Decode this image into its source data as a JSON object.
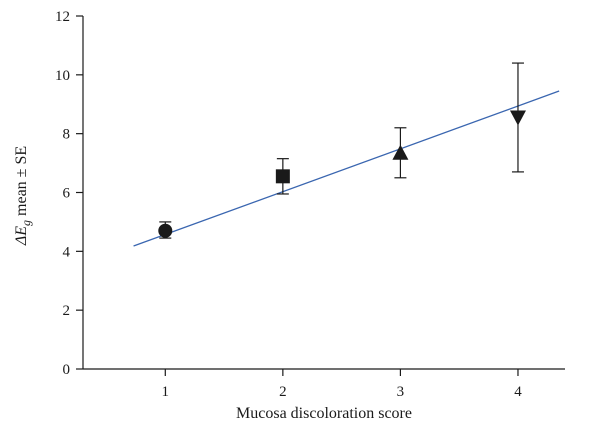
{
  "chart_data": {
    "type": "scatter",
    "title": "",
    "xlabel": "Mucosa discoloration score",
    "ylabel": {
      "prefix": "ΔE",
      "subscript": "g",
      "suffix": " mean ± SE"
    },
    "xlim": [
      0.3,
      4.4
    ],
    "ylim": [
      0,
      12
    ],
    "xticks": [
      1,
      2,
      3,
      4
    ],
    "yticks": [
      0,
      2,
      4,
      6,
      8,
      10,
      12
    ],
    "grid": false,
    "points": [
      {
        "x": 1,
        "y": 4.7,
        "err_low": 4.45,
        "err_high": 5.0,
        "marker": "circle"
      },
      {
        "x": 2,
        "y": 6.55,
        "err_low": 5.95,
        "err_high": 7.15,
        "marker": "square"
      },
      {
        "x": 3,
        "y": 7.35,
        "err_low": 6.5,
        "err_high": 8.2,
        "marker": "triangle-up"
      },
      {
        "x": 4,
        "y": 8.55,
        "err_low": 6.7,
        "err_high": 10.4,
        "marker": "triangle-down"
      }
    ],
    "fit_line": {
      "x": [
        0.73,
        4.35
      ],
      "y": [
        4.18,
        9.45
      ],
      "color": "#3a66b0"
    }
  }
}
